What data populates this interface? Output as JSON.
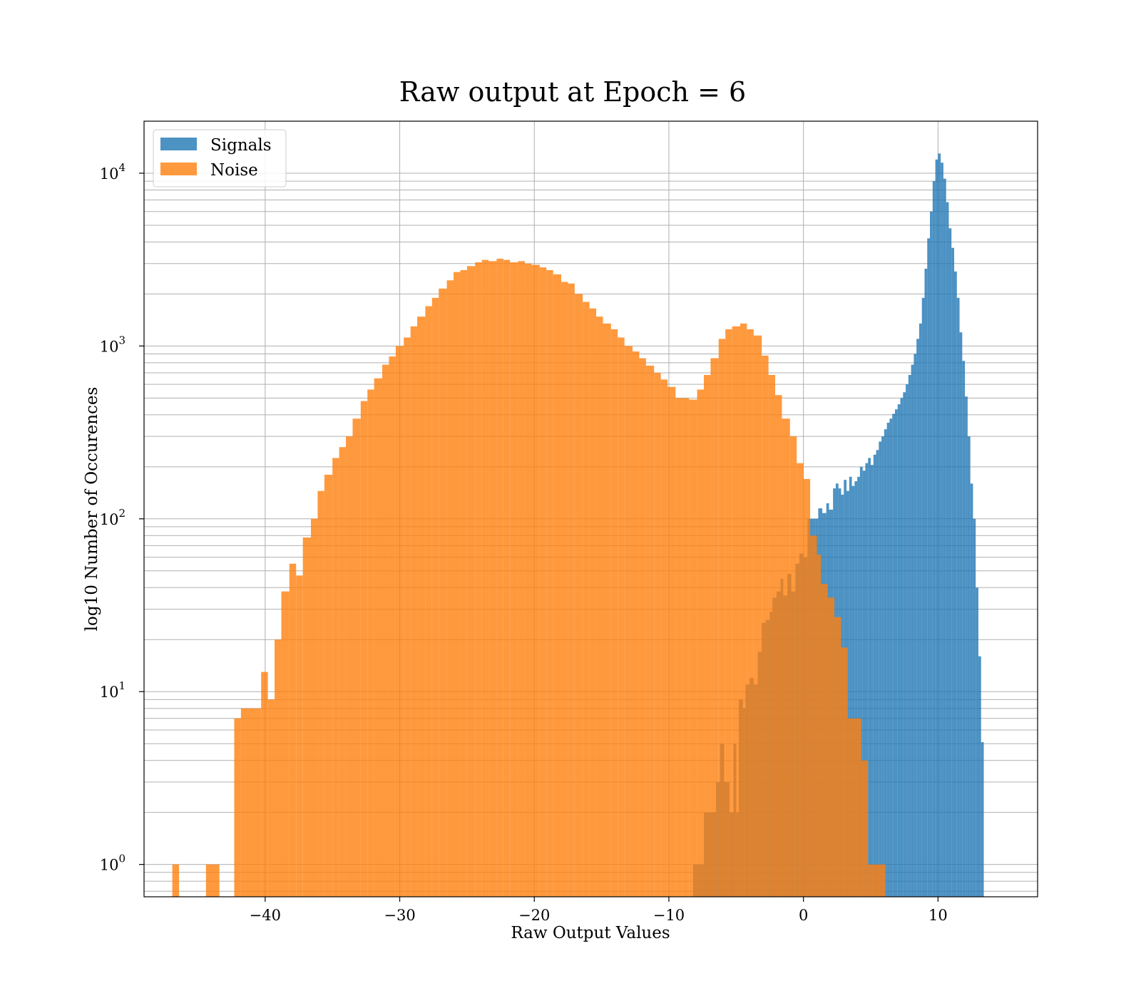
{
  "chart_data": {
    "type": "histogram",
    "title": "Raw output at Epoch = 6",
    "xlabel": "Raw Output Values",
    "ylabel": "log10 Number of Occurences",
    "xlim": [
      -49,
      17.4
    ],
    "ylim": [
      0.65,
      20000
    ],
    "yscale": "log",
    "grid": true,
    "legend_position": "upper-left",
    "x_ticks": [
      -40,
      -30,
      -20,
      -10,
      0,
      10
    ],
    "x_tick_labels": [
      "−40",
      "−30",
      "−20",
      "−10",
      "0",
      "10"
    ],
    "y_tick_labels": [
      {
        "base": "10",
        "exp": "0",
        "value": 1
      },
      {
        "base": "10",
        "exp": "1",
        "value": 10
      },
      {
        "base": "10",
        "exp": "2",
        "value": 100
      },
      {
        "base": "10",
        "exp": "3",
        "value": 1000
      },
      {
        "base": "10",
        "exp": "4",
        "value": 10000
      }
    ],
    "series": [
      {
        "name": "Signals",
        "color": "#1f77b4",
        "bins": [
          [
            -8.2,
            -7.9,
            1
          ],
          [
            -7.9,
            -7.4,
            1
          ],
          [
            -7.4,
            -6.9,
            2
          ],
          [
            -6.9,
            -6.5,
            2
          ],
          [
            -6.5,
            -6.2,
            3
          ],
          [
            -6.2,
            -5.9,
            5
          ],
          [
            -5.9,
            -5.5,
            3
          ],
          [
            -5.5,
            -5.2,
            2
          ],
          [
            -5.2,
            -5.0,
            5
          ],
          [
            -5.0,
            -4.8,
            2
          ],
          [
            -4.8,
            -4.5,
            9
          ],
          [
            -4.5,
            -4.3,
            8
          ],
          [
            -4.3,
            -4.0,
            11
          ],
          [
            -4.0,
            -3.7,
            12
          ],
          [
            -3.7,
            -3.4,
            11
          ],
          [
            -3.4,
            -3.1,
            17
          ],
          [
            -3.1,
            -2.8,
            25
          ],
          [
            -2.8,
            -2.5,
            26
          ],
          [
            -2.5,
            -2.3,
            29
          ],
          [
            -2.3,
            -2.0,
            35
          ],
          [
            -2.0,
            -1.7,
            38
          ],
          [
            -1.7,
            -1.5,
            45
          ],
          [
            -1.5,
            -1.2,
            36
          ],
          [
            -1.2,
            -0.9,
            48
          ],
          [
            -0.9,
            -0.6,
            38
          ],
          [
            -0.6,
            -0.3,
            55
          ],
          [
            -0.3,
            0.0,
            63
          ],
          [
            0.0,
            0.3,
            60
          ],
          [
            0.3,
            0.6,
            100
          ],
          [
            0.6,
            0.9,
            100
          ],
          [
            0.9,
            1.1,
            100
          ],
          [
            1.1,
            1.4,
            115
          ],
          [
            1.4,
            1.7,
            108
          ],
          [
            1.7,
            1.9,
            123
          ],
          [
            1.9,
            2.2,
            113
          ],
          [
            2.2,
            2.4,
            150
          ],
          [
            2.4,
            2.6,
            160
          ],
          [
            2.6,
            2.8,
            150
          ],
          [
            2.8,
            3.0,
            138
          ],
          [
            3.0,
            3.2,
            168
          ],
          [
            3.2,
            3.4,
            145
          ],
          [
            3.4,
            3.6,
            175
          ],
          [
            3.6,
            3.8,
            155
          ],
          [
            3.8,
            4.0,
            165
          ],
          [
            4.0,
            4.2,
            175
          ],
          [
            4.2,
            4.4,
            200
          ],
          [
            4.4,
            4.6,
            190
          ],
          [
            4.6,
            4.8,
            210
          ],
          [
            4.8,
            5.0,
            225
          ],
          [
            5.0,
            5.2,
            205
          ],
          [
            5.2,
            5.4,
            235
          ],
          [
            5.4,
            5.6,
            250
          ],
          [
            5.6,
            5.8,
            280
          ],
          [
            5.8,
            6.0,
            300
          ],
          [
            6.0,
            6.2,
            330
          ],
          [
            6.2,
            6.4,
            360
          ],
          [
            6.4,
            6.6,
            380
          ],
          [
            6.6,
            6.8,
            405
          ],
          [
            6.8,
            7.0,
            430
          ],
          [
            7.0,
            7.2,
            460
          ],
          [
            7.2,
            7.4,
            500
          ],
          [
            7.4,
            7.6,
            540
          ],
          [
            7.6,
            7.8,
            600
          ],
          [
            7.8,
            8.0,
            680
          ],
          [
            8.0,
            8.2,
            780
          ],
          [
            8.2,
            8.4,
            900
          ],
          [
            8.4,
            8.6,
            1100
          ],
          [
            8.6,
            8.8,
            1350
          ],
          [
            8.8,
            9.0,
            1900
          ],
          [
            9.0,
            9.2,
            2800
          ],
          [
            9.2,
            9.4,
            4200
          ],
          [
            9.4,
            9.6,
            6000
          ],
          [
            9.6,
            9.8,
            9000
          ],
          [
            9.8,
            10.0,
            12000
          ],
          [
            10.0,
            10.2,
            13000
          ],
          [
            10.2,
            10.4,
            11500
          ],
          [
            10.4,
            10.6,
            9300
          ],
          [
            10.6,
            10.8,
            6800
          ],
          [
            10.8,
            11.0,
            4800
          ],
          [
            11.0,
            11.2,
            3700
          ],
          [
            11.2,
            11.4,
            2700
          ],
          [
            11.4,
            11.6,
            1900
          ],
          [
            11.6,
            11.8,
            1200
          ],
          [
            11.8,
            12.0,
            820
          ],
          [
            12.0,
            12.2,
            510
          ],
          [
            12.2,
            12.4,
            300
          ],
          [
            12.4,
            12.6,
            160
          ],
          [
            12.6,
            12.8,
            100
          ],
          [
            12.8,
            13.0,
            40
          ],
          [
            13.0,
            13.2,
            16
          ],
          [
            13.2,
            13.4,
            5.1
          ]
        ]
      },
      {
        "name": "Noise",
        "color": "#ff7f0e",
        "bins": [
          [
            -46.9,
            -46.4,
            1
          ],
          [
            -44.4,
            -43.4,
            1
          ],
          [
            -42.3,
            -41.8,
            7
          ],
          [
            -41.8,
            -40.3,
            8
          ],
          [
            -40.3,
            -39.8,
            13
          ],
          [
            -39.8,
            -39.3,
            9
          ],
          [
            -39.3,
            -38.8,
            20
          ],
          [
            -38.8,
            -38.2,
            38
          ],
          [
            -38.2,
            -37.7,
            55
          ],
          [
            -37.7,
            -37.2,
            47
          ],
          [
            -37.2,
            -36.6,
            78
          ],
          [
            -36.6,
            -36.1,
            100
          ],
          [
            -36.1,
            -35.6,
            145
          ],
          [
            -35.6,
            -35.0,
            180
          ],
          [
            -35.0,
            -34.5,
            225
          ],
          [
            -34.5,
            -34.0,
            260
          ],
          [
            -34.0,
            -33.5,
            300
          ],
          [
            -33.5,
            -32.9,
            380
          ],
          [
            -32.9,
            -32.4,
            480
          ],
          [
            -32.4,
            -31.9,
            560
          ],
          [
            -31.9,
            -31.3,
            650
          ],
          [
            -31.3,
            -30.8,
            780
          ],
          [
            -30.8,
            -30.3,
            870
          ],
          [
            -30.3,
            -29.7,
            1000
          ],
          [
            -29.7,
            -29.2,
            1120
          ],
          [
            -29.2,
            -28.7,
            1300
          ],
          [
            -28.7,
            -28.1,
            1480
          ],
          [
            -28.1,
            -27.6,
            1700
          ],
          [
            -27.6,
            -27.1,
            1900
          ],
          [
            -27.1,
            -26.5,
            2150
          ],
          [
            -26.5,
            -26.0,
            2400
          ],
          [
            -26.0,
            -25.5,
            2680
          ],
          [
            -25.5,
            -25.0,
            2750
          ],
          [
            -25.0,
            -24.4,
            2900
          ],
          [
            -24.4,
            -23.9,
            3050
          ],
          [
            -23.9,
            -23.4,
            3150
          ],
          [
            -23.4,
            -22.8,
            3100
          ],
          [
            -22.8,
            -22.3,
            3200
          ],
          [
            -22.3,
            -21.8,
            3150
          ],
          [
            -21.8,
            -21.2,
            3050
          ],
          [
            -21.2,
            -20.7,
            3100
          ],
          [
            -20.7,
            -20.2,
            3000
          ],
          [
            -20.2,
            -19.6,
            2950
          ],
          [
            -19.6,
            -19.1,
            2850
          ],
          [
            -19.1,
            -18.6,
            2750
          ],
          [
            -18.6,
            -18.0,
            2600
          ],
          [
            -18.0,
            -17.5,
            2350
          ],
          [
            -17.5,
            -17.0,
            2300
          ],
          [
            -17.0,
            -16.4,
            2000
          ],
          [
            -16.4,
            -15.9,
            1800
          ],
          [
            -15.9,
            -15.4,
            1650
          ],
          [
            -15.4,
            -14.9,
            1480
          ],
          [
            -14.9,
            -14.3,
            1350
          ],
          [
            -14.3,
            -13.8,
            1250
          ],
          [
            -13.8,
            -13.3,
            1120
          ],
          [
            -13.3,
            -12.7,
            1000
          ],
          [
            -12.7,
            -12.2,
            930
          ],
          [
            -12.2,
            -11.7,
            850
          ],
          [
            -11.7,
            -11.1,
            770
          ],
          [
            -11.1,
            -10.6,
            700
          ],
          [
            -10.6,
            -10.1,
            640
          ],
          [
            -10.1,
            -9.5,
            580
          ],
          [
            -9.5,
            -9.0,
            500
          ],
          [
            -9.0,
            -8.5,
            500
          ],
          [
            -8.5,
            -7.9,
            490
          ],
          [
            -7.9,
            -7.4,
            560
          ],
          [
            -7.4,
            -6.9,
            680
          ],
          [
            -6.9,
            -6.3,
            850
          ],
          [
            -6.3,
            -5.8,
            1100
          ],
          [
            -5.8,
            -5.3,
            1250
          ],
          [
            -5.3,
            -4.7,
            1300
          ],
          [
            -4.7,
            -4.2,
            1350
          ],
          [
            -4.2,
            -3.7,
            1250
          ],
          [
            -3.7,
            -3.1,
            1150
          ],
          [
            -3.1,
            -2.6,
            880
          ],
          [
            -2.6,
            -2.1,
            680
          ],
          [
            -2.1,
            -1.6,
            520
          ],
          [
            -1.6,
            -1.0,
            380
          ],
          [
            -1.0,
            -0.5,
            300
          ],
          [
            -0.5,
            0.0,
            210
          ],
          [
            0.0,
            0.5,
            170
          ],
          [
            0.5,
            1.0,
            80
          ],
          [
            1.0,
            1.3,
            62
          ],
          [
            1.3,
            1.8,
            42
          ],
          [
            1.8,
            2.3,
            35
          ],
          [
            2.3,
            2.8,
            27
          ],
          [
            2.8,
            3.3,
            18
          ],
          [
            3.3,
            4.3,
            7
          ],
          [
            4.3,
            4.8,
            4
          ],
          [
            4.8,
            6.1,
            1
          ]
        ]
      }
    ]
  }
}
